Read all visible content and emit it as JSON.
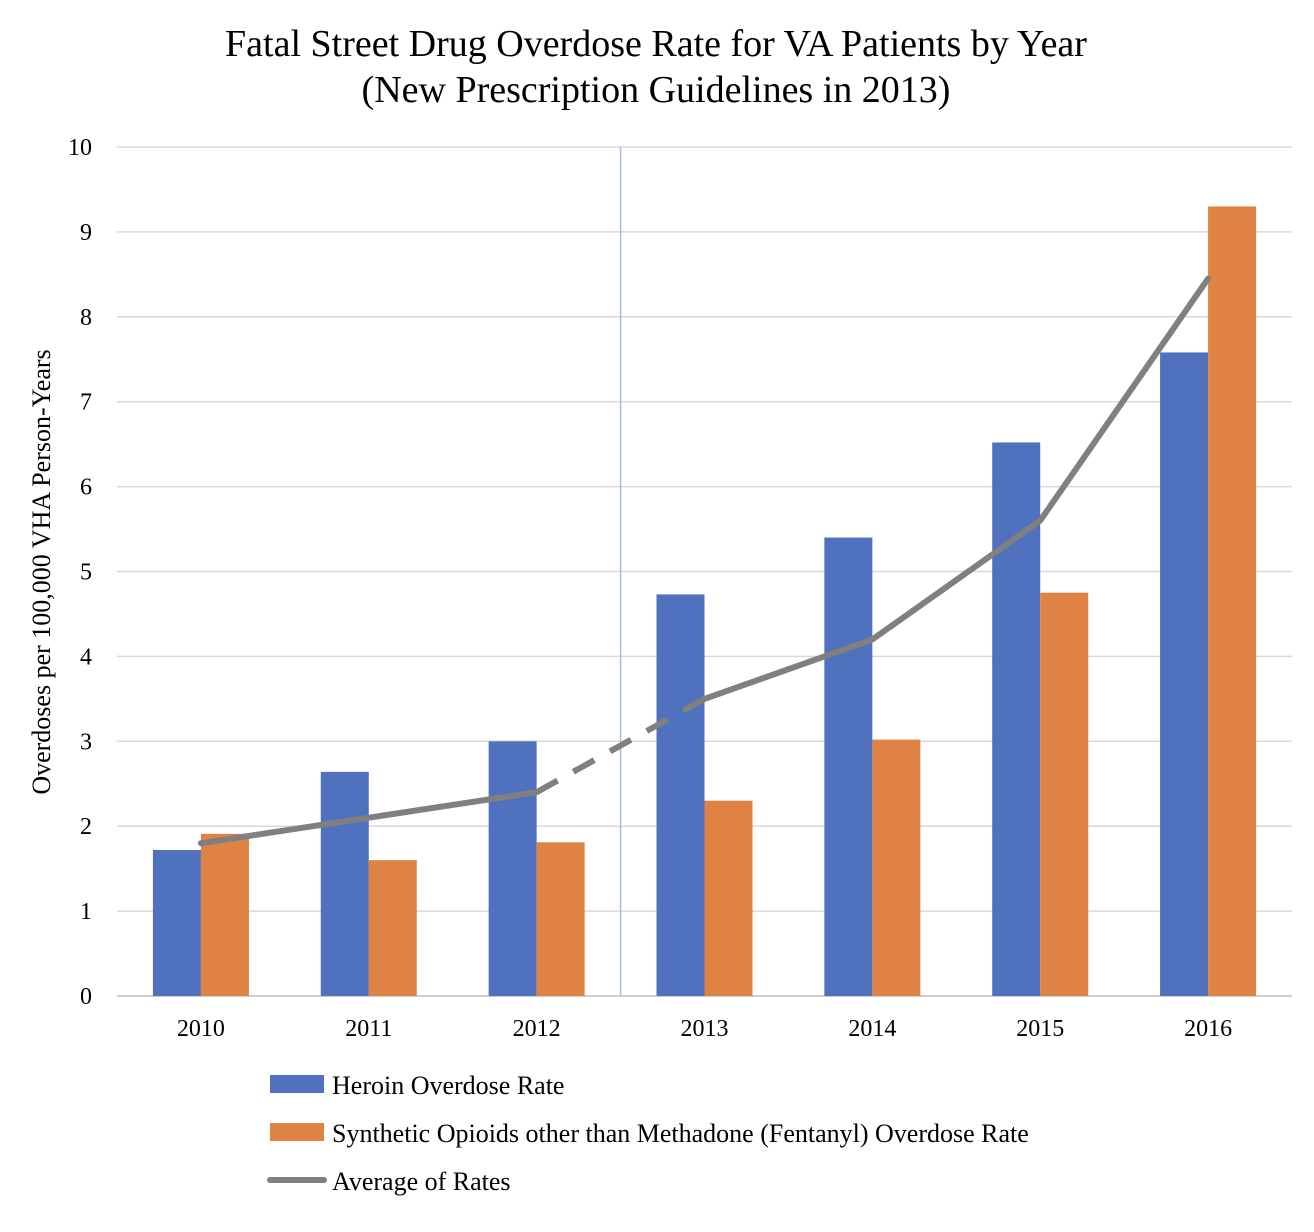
{
  "chart_data": {
    "type": "bar",
    "title": "Fatal Street Drug Overdose Rate for VA Patients by Year",
    "subtitle": "(New Prescription Guidelines in 2013)",
    "xlabel": "",
    "ylabel": "Overdoses per 100,000 VHA Person-Years",
    "categories": [
      "2010",
      "2011",
      "2012",
      "2013",
      "2014",
      "2015",
      "2016"
    ],
    "ylim": [
      0,
      10
    ],
    "yticks": [
      0,
      1,
      2,
      3,
      4,
      5,
      6,
      7,
      8,
      9,
      10
    ],
    "grid": true,
    "legend_position": "bottom",
    "divider_after_category": "2012",
    "series": [
      {
        "name": "Heroin Overdose Rate",
        "type": "bar",
        "color": "#4F71BE",
        "values": [
          1.72,
          2.64,
          3.0,
          4.73,
          5.4,
          6.52,
          7.58
        ]
      },
      {
        "name": "Synthetic Opioids other than Methadone (Fentanyl) Overdose Rate",
        "type": "bar",
        "color": "#DE8344",
        "values": [
          1.91,
          1.6,
          1.81,
          2.3,
          3.02,
          4.75,
          9.3
        ]
      },
      {
        "name": "Average of Rates",
        "type": "line",
        "color": "#808080",
        "values": [
          1.8,
          2.1,
          2.4,
          3.5,
          4.2,
          5.6,
          8.45
        ],
        "dashed_segment": [
          "2012",
          "2013"
        ]
      }
    ]
  }
}
